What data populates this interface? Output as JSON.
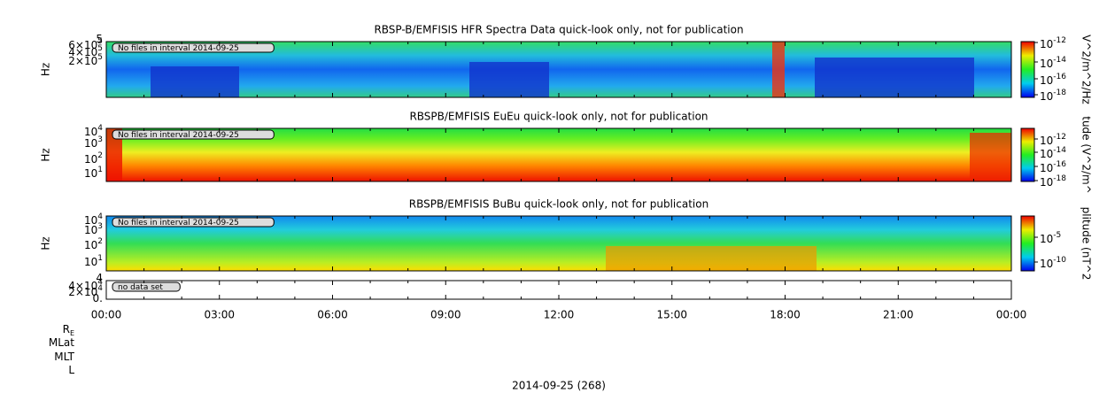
{
  "panels": [
    {
      "title": "RBSP-B/EMFISIS  HFR Spectra Data quick-look only, not for publication",
      "ylabel": "Hz",
      "yticks": [
        {
          "text": "5"
        },
        {
          "text": "6×10",
          "exp": "5"
        },
        {
          "text": "4×10",
          "exp": "5"
        },
        {
          "text": "2×10",
          "exp": "5"
        }
      ],
      "note": "No files in interval 2014-09-25",
      "colorbar_label": "V^2/m^2/Hz",
      "colorbar_ticks": [
        {
          "text": "10",
          "exp": "-12"
        },
        {
          "text": "10",
          "exp": "-14"
        },
        {
          "text": "10",
          "exp": "-16"
        },
        {
          "text": "10",
          "exp": "-18"
        }
      ]
    },
    {
      "title": "RBSPB/EMFISIS  EuEu quick-look only, not for publication",
      "ylabel": "Hz",
      "yticks": [
        {
          "text": "10",
          "exp": "4"
        },
        {
          "text": "10",
          "exp": "3"
        },
        {
          "text": "10",
          "exp": "2"
        },
        {
          "text": "10",
          "exp": "1"
        }
      ],
      "note": "No files in interval 2014-09-25",
      "colorbar_label": "tude (V^2/m^",
      "colorbar_ticks": [
        {
          "text": "10",
          "exp": "-12"
        },
        {
          "text": "10",
          "exp": "-14"
        },
        {
          "text": "10",
          "exp": "-16"
        },
        {
          "text": "10",
          "exp": "-18"
        }
      ]
    },
    {
      "title": "RBSPB/EMFISIS  BuBu quick-look only, not for publication",
      "ylabel": "Hz",
      "yticks": [
        {
          "text": "10",
          "exp": "4"
        },
        {
          "text": "10",
          "exp": "3"
        },
        {
          "text": "10",
          "exp": "2"
        },
        {
          "text": "10",
          "exp": "1"
        }
      ],
      "note": "No files in interval 2014-09-25",
      "colorbar_label": "plitude (nT^2",
      "colorbar_ticks": [
        {
          "text": "10",
          "exp": "-5"
        },
        {
          "text": "10",
          "exp": "-10"
        }
      ]
    },
    {
      "yticks": [
        {
          "text": "4"
        },
        {
          "text": "4×10",
          "exp": "4"
        },
        {
          "text": "2×10",
          "exp": "4"
        },
        {
          "text": "0."
        }
      ],
      "note": "no data set"
    }
  ],
  "time_labels": [
    "00:00",
    "03:00",
    "06:00",
    "09:00",
    "12:00",
    "15:00",
    "18:00",
    "21:00",
    "00:00"
  ],
  "ephemeris_labels": [
    {
      "text": "R",
      "sub": "E"
    },
    {
      "text": "MLat"
    },
    {
      "text": "MLT"
    },
    {
      "text": "L"
    }
  ],
  "date_label": "2014-09-25 (268)"
}
